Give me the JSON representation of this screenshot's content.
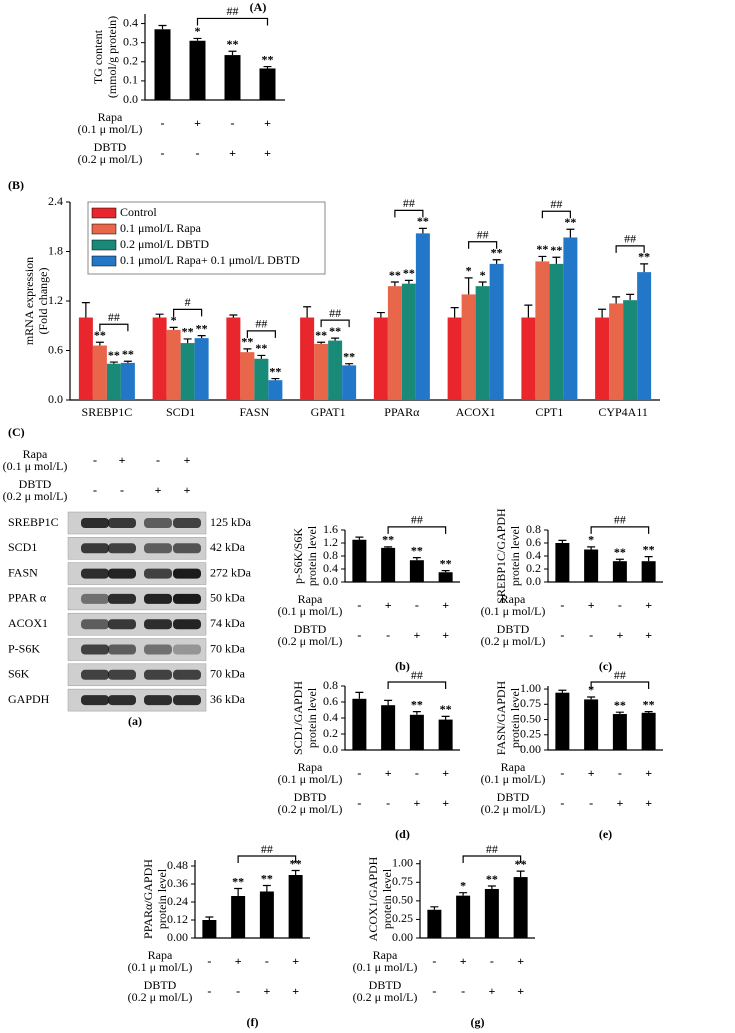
{
  "chart_data": [
    {
      "type": "bar",
      "title": "(A)",
      "ylabel": [
        "TG content",
        "(mmol/g protein)"
      ],
      "values": [
        0.37,
        0.31,
        0.235,
        0.165
      ],
      "errors": [
        0.02,
        0.012,
        0.02,
        0.01
      ],
      "stars": [
        null,
        "*",
        "**",
        "**"
      ],
      "bracket": "##",
      "color": "#000000",
      "ylim": [
        0,
        0.45
      ],
      "yticks": [
        {
          "value": 0,
          "label": "0.0"
        },
        0.1,
        0.2,
        0.3,
        0.4
      ],
      "treatments": [
        {
          "label": [
            "Rapa",
            "(0.1 μ mol/L)"
          ],
          "signs": [
            "-",
            "+",
            "-",
            "+"
          ]
        },
        {
          "label": [
            "DBTD",
            "(0.2 μ mol/L)"
          ],
          "signs": [
            "-",
            "-",
            "+",
            "+"
          ]
        }
      ]
    },
    {
      "type": "bar",
      "title": "(B)",
      "ylabel": [
        "mRNA expression",
        "(Fold change)"
      ],
      "categories": [
        "SREBP1C",
        "SCD1",
        "FASN",
        "GPAT1",
        "PPARα",
        "ACOX1",
        "CPT1",
        "CYP4A11"
      ],
      "series": [
        {
          "name": "Control",
          "color": "#e8262b",
          "values": [
            1.0,
            1.0,
            1.0,
            1.0,
            1.0,
            1.0,
            1.0,
            1.0
          ],
          "errors": [
            0.18,
            0.04,
            0.03,
            0.13,
            0.06,
            0.12,
            0.15,
            0.1
          ],
          "stars": [
            null,
            null,
            null,
            null,
            null,
            null,
            null,
            null
          ]
        },
        {
          "name": "0.1 μmol/L Rapa",
          "color": "#e8664a",
          "values": [
            0.66,
            0.85,
            0.58,
            0.68,
            1.38,
            1.28,
            1.68,
            1.17
          ],
          "errors": [
            0.04,
            0.03,
            0.04,
            0.02,
            0.05,
            0.2,
            0.06,
            0.08
          ],
          "stars": [
            "**",
            "*",
            "**",
            "**",
            "**",
            "*",
            "**",
            null
          ]
        },
        {
          "name": "0.2 μmol/L DBTD",
          "color": "#1a8a78",
          "values": [
            0.44,
            0.69,
            0.5,
            0.72,
            1.41,
            1.38,
            1.65,
            1.21
          ],
          "errors": [
            0.02,
            0.05,
            0.04,
            0.03,
            0.04,
            0.05,
            0.08,
            0.07
          ],
          "stars": [
            "**",
            "**",
            "**",
            "**",
            "**",
            "*",
            "**",
            null
          ]
        },
        {
          "name": "0.1 μmol/L Rapa+ 0.1 μmol/L DBTD",
          "color": "#2277c8",
          "values": [
            0.45,
            0.75,
            0.24,
            0.42,
            2.02,
            1.65,
            1.97,
            1.55
          ],
          "errors": [
            0.02,
            0.03,
            0.02,
            0.02,
            0.06,
            0.05,
            0.1,
            0.1
          ],
          "stars": [
            "**",
            "**",
            "**",
            "**",
            "**",
            "**",
            "**",
            "**"
          ]
        }
      ],
      "brackets": [
        "##",
        "#",
        "##",
        "##",
        "##",
        "##",
        "##",
        "##"
      ],
      "ylim": [
        0,
        2.4
      ],
      "yticks": [
        {
          "value": 0,
          "label": "0.0"
        },
        0.6,
        1.2,
        1.8,
        2.4
      ],
      "legend": "top-left"
    },
    {
      "type": "bar",
      "panel": "(b)",
      "ylabel": [
        "p-S6K/S6K",
        "protein level"
      ],
      "values": [
        1.3,
        1.05,
        0.67,
        0.3
      ],
      "errors": [
        0.08,
        0.03,
        0.08,
        0.05
      ],
      "stars": [
        null,
        "**",
        "**",
        "**"
      ],
      "bracket": "##",
      "color": "#000000",
      "ylim": [
        0,
        1.6
      ],
      "yticks": [
        {
          "value": 0,
          "label": "0.0"
        },
        0.4,
        0.8,
        1.2,
        1.6
      ],
      "treatments": [
        {
          "label": [
            "Rapa",
            "(0.1 μ mol/L)"
          ],
          "signs": [
            "-",
            "+",
            "-",
            "+"
          ]
        },
        {
          "label": [
            "DBTD",
            "(0.2 μ mol/L)"
          ],
          "signs": [
            "-",
            "-",
            "+",
            "+"
          ]
        }
      ]
    },
    {
      "type": "bar",
      "panel": "(c)",
      "ylabel": [
        "SREBP1C/GAPDH",
        "protein level"
      ],
      "values": [
        0.6,
        0.5,
        0.32,
        0.32
      ],
      "errors": [
        0.04,
        0.04,
        0.03,
        0.07
      ],
      "stars": [
        null,
        "*",
        "**",
        "**"
      ],
      "bracket": "##",
      "color": "#000000",
      "ylim": [
        0,
        0.8
      ],
      "yticks": [
        {
          "value": 0,
          "label": "0.0"
        },
        0.2,
        0.4,
        0.6,
        0.8
      ],
      "treatments": [
        {
          "label": [
            "Rapa",
            "(0.1 μ mol/L)"
          ],
          "signs": [
            "-",
            "+",
            "-",
            "+"
          ]
        },
        {
          "label": [
            "DBTD",
            "(0.2 μ mol/L)"
          ],
          "signs": [
            "-",
            "-",
            "+",
            "+"
          ]
        }
      ]
    },
    {
      "type": "bar",
      "panel": "(d)",
      "ylabel": [
        "SCD1/GAPDH",
        "protein level"
      ],
      "values": [
        0.64,
        0.56,
        0.44,
        0.38
      ],
      "errors": [
        0.08,
        0.06,
        0.04,
        0.04
      ],
      "stars": [
        null,
        null,
        "**",
        "**"
      ],
      "bracket": "##",
      "color": "#000000",
      "ylim": [
        0,
        0.8
      ],
      "yticks": [
        {
          "value": 0,
          "label": "0.0"
        },
        0.2,
        0.4,
        0.6,
        0.8
      ],
      "treatments": [
        {
          "label": [
            "Rapa",
            "(0.1 μ mol/L)"
          ],
          "signs": [
            "-",
            "+",
            "-",
            "+"
          ]
        },
        {
          "label": [
            "DBTD",
            "(0.2 μ mol/L)"
          ],
          "signs": [
            "-",
            "-",
            "+",
            "+"
          ]
        }
      ]
    },
    {
      "type": "bar",
      "panel": "(e)",
      "ylabel": [
        "FASN/GAPDH",
        "protein level"
      ],
      "values": [
        0.94,
        0.83,
        0.59,
        0.61
      ],
      "errors": [
        0.04,
        0.04,
        0.03,
        0.02
      ],
      "stars": [
        null,
        "*",
        "**",
        "**"
      ],
      "bracket": "##",
      "color": "#000000",
      "ylim": [
        0,
        1.05
      ],
      "yticks": [
        {
          "value": 0,
          "label": "0.00"
        },
        0.25,
        {
          "value": 0.5,
          "label": "0.50"
        },
        0.75,
        {
          "value": 1,
          "label": "1.00"
        }
      ],
      "treatments": [
        {
          "label": [
            "Rapa",
            "(0.1 μ mol/L)"
          ],
          "signs": [
            "-",
            "+",
            "-",
            "+"
          ]
        },
        {
          "label": [
            "DBTD",
            "(0.2 μ mol/L)"
          ],
          "signs": [
            "-",
            "-",
            "+",
            "+"
          ]
        }
      ]
    },
    {
      "type": "bar",
      "panel": "(f)",
      "ylabel": [
        "PPARα/GAPDH",
        "protein level"
      ],
      "values": [
        0.12,
        0.28,
        0.31,
        0.42
      ],
      "errors": [
        0.02,
        0.05,
        0.04,
        0.03
      ],
      "stars": [
        null,
        "**",
        "**",
        "**"
      ],
      "bracket": "##",
      "color": "#000000",
      "ylim": [
        0,
        0.52
      ],
      "yticks": [
        {
          "value": 0,
          "label": "0.00"
        },
        0.12,
        0.24,
        0.36,
        0.48
      ],
      "treatments": [
        {
          "label": [
            "Rapa",
            "(0.1 μ mol/L)"
          ],
          "signs": [
            "-",
            "+",
            "-",
            "+"
          ]
        },
        {
          "label": [
            "DBTD",
            "(0.2 μ mol/L)"
          ],
          "signs": [
            "-",
            "-",
            "+",
            "+"
          ]
        }
      ]
    },
    {
      "type": "bar",
      "panel": "(g)",
      "ylabel": [
        "ACOX1/GAPDH",
        "protein level"
      ],
      "values": [
        0.38,
        0.57,
        0.66,
        0.82
      ],
      "errors": [
        0.04,
        0.04,
        0.04,
        0.08
      ],
      "stars": [
        null,
        "*",
        "**",
        "**"
      ],
      "bracket": "##",
      "color": "#000000",
      "ylim": [
        0,
        1.05
      ],
      "yticks": [
        {
          "value": 0,
          "label": "0.00"
        },
        0.25,
        {
          "value": 0.5,
          "label": "0.50"
        },
        0.75,
        {
          "value": 1,
          "label": "1.00"
        }
      ],
      "treatments": [
        {
          "label": [
            "Rapa",
            "(0.1 μ mol/L)"
          ],
          "signs": [
            "-",
            "+",
            "-",
            "+"
          ]
        },
        {
          "label": [
            "DBTD",
            "(0.2 μ mol/L)"
          ],
          "signs": [
            "-",
            "-",
            "+",
            "+"
          ]
        }
      ]
    }
  ],
  "blot": {
    "title": "(C)",
    "panel": "(a)",
    "treatments": [
      {
        "label": [
          "Rapa",
          "(0.1 μ mol/L)"
        ],
        "signs": [
          "-",
          "+",
          "-",
          "+"
        ]
      },
      {
        "label": [
          "DBTD",
          "(0.2 μ mol/L)"
        ],
        "signs": [
          "-",
          "-",
          "+",
          "+"
        ]
      }
    ],
    "rows": [
      {
        "name": "SREBP1C",
        "size": "125 kDa"
      },
      {
        "name": "SCD1",
        "size": "42 kDa"
      },
      {
        "name": "FASN",
        "size": "272 kDa"
      },
      {
        "name": "PPAR α",
        "size": "50 kDa"
      },
      {
        "name": "ACOX1",
        "size": "74 kDa"
      },
      {
        "name": "P-S6K",
        "size": "70 kDa"
      },
      {
        "name": "S6K",
        "size": "70 kDa"
      },
      {
        "name": "GAPDH",
        "size": "36 kDa"
      }
    ]
  }
}
